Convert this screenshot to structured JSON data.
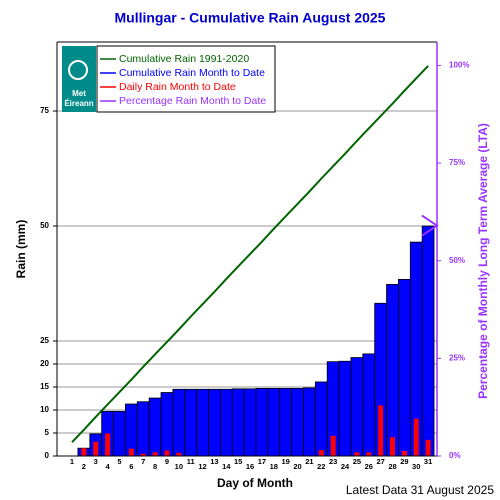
{
  "chart_data": {
    "type": "bar",
    "title": "Mullingar - Cumulative Rain August   2025",
    "xlabel": "Day of Month",
    "ylabel": "Rain (mm)",
    "y2label": "Percentage  of Monthly Long Term Average (LTA)",
    "footer": "Latest Data 31 August 2025",
    "logo": [
      "Met",
      "Éireann"
    ],
    "categories": [
      "1",
      "2",
      "3",
      "4",
      "5",
      "6",
      "7",
      "8",
      "9",
      "10",
      "11",
      "12",
      "13",
      "14",
      "15",
      "16",
      "17",
      "18",
      "19",
      "20",
      "21",
      "22",
      "23",
      "24",
      "25",
      "26",
      "27",
      "28",
      "29",
      "30",
      "31"
    ],
    "series": [
      {
        "name": "Cumulative Rain 1991-2020",
        "color": "#006400",
        "kind": "line",
        "values": [
          3.0,
          5.7,
          8.5,
          11.2,
          13.9,
          16.6,
          19.4,
          22.1,
          24.8,
          27.5,
          30.3,
          33.0,
          35.7,
          38.5,
          41.2,
          43.9,
          46.6,
          49.4,
          52.1,
          54.8,
          57.5,
          60.3,
          63.0,
          65.7,
          68.5,
          71.2,
          73.9,
          76.6,
          79.4,
          82.1,
          84.8
        ]
      },
      {
        "name": "Cumulative Rain Month to Date",
        "color": "#0000ff",
        "kind": "bar",
        "values": [
          0,
          1.7,
          4.8,
          9.7,
          9.7,
          11.3,
          11.8,
          12.6,
          13.8,
          14.5,
          14.5,
          14.5,
          14.5,
          14.5,
          14.6,
          14.6,
          14.7,
          14.7,
          14.7,
          14.7,
          14.8,
          16.1,
          20.5,
          20.6,
          21.4,
          22.2,
          33.2,
          37.3,
          38.4,
          46.5,
          50.0
        ]
      },
      {
        "name": "Daily Rain Month to Date",
        "color": "#ff0000",
        "kind": "narrowbar",
        "values": [
          0,
          1.7,
          3.1,
          4.9,
          0,
          1.6,
          0.5,
          0.8,
          1.2,
          0.7,
          0,
          0,
          0,
          0,
          0.1,
          0,
          0.1,
          0,
          0,
          0,
          0.1,
          1.3,
          4.4,
          0.1,
          0.8,
          0.8,
          11.0,
          4.1,
          1.1,
          8.1,
          3.5
        ]
      },
      {
        "name": "Percentage Rain Month to Date",
        "color": "#9933ff",
        "kind": "marker",
        "axis": "y2",
        "values": [
          null,
          null,
          null,
          null,
          null,
          null,
          null,
          null,
          null,
          null,
          null,
          null,
          null,
          null,
          null,
          null,
          null,
          null,
          null,
          null,
          null,
          null,
          null,
          null,
          null,
          null,
          null,
          null,
          null,
          null,
          59
        ]
      }
    ],
    "ylim": [
      0,
      90
    ],
    "yticks": [
      0,
      5,
      10,
      15,
      20,
      25,
      50,
      75
    ],
    "y2lim": [
      0,
      106
    ],
    "y2ticks": [
      {
        "value": 0,
        "label": "0%"
      },
      {
        "value": 25,
        "label": "25%"
      },
      {
        "value": 50,
        "label": "50%"
      },
      {
        "value": 75,
        "label": "75%"
      },
      {
        "value": 100,
        "label": "100%"
      }
    ],
    "y2color": "#9933ff",
    "grid": true
  }
}
